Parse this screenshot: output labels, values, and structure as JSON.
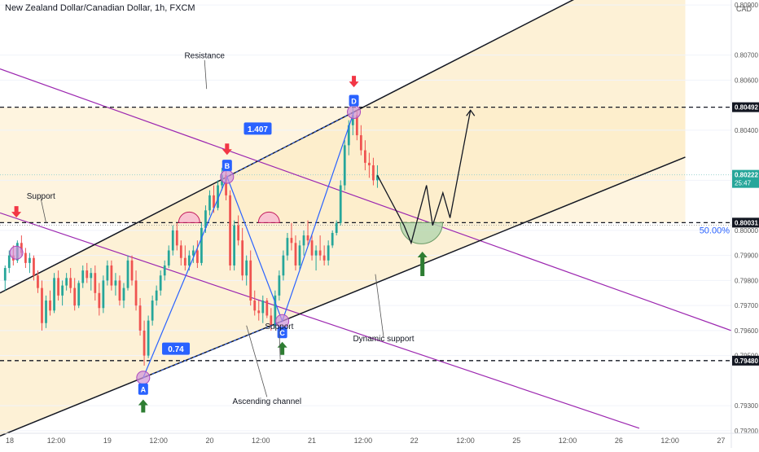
{
  "header": {
    "title": "New Zealand Dollar/Canadian Dollar, 1h, FXCM",
    "currency": "CAD"
  },
  "chart_data": {
    "type": "candlestick",
    "ylim": [
      0.7919,
      0.8092
    ],
    "y_ticks": [
      {
        "value": 0.809,
        "label": "0.80900"
      },
      {
        "value": 0.807,
        "label": "0.80700"
      },
      {
        "value": 0.806,
        "label": "0.80600"
      },
      {
        "value": 0.804,
        "label": "0.80400"
      },
      {
        "value": 0.802,
        "label": "0.80200"
      },
      {
        "value": 0.8,
        "label": "0.80000"
      },
      {
        "value": 0.799,
        "label": "0.79900"
      },
      {
        "value": 0.798,
        "label": "0.79800"
      },
      {
        "value": 0.797,
        "label": "0.79700"
      },
      {
        "value": 0.796,
        "label": "0.79600"
      },
      {
        "value": 0.795,
        "label": "0.79500"
      },
      {
        "value": 0.793,
        "label": "0.79300"
      },
      {
        "value": 0.792,
        "label": "0.79200"
      }
    ],
    "price_tags": [
      {
        "value": 0.80492,
        "label": "0.80492",
        "style": "dark"
      },
      {
        "value": 0.80222,
        "label": "0.80222",
        "sub": "25:47",
        "style": "teal"
      },
      {
        "value": 0.80031,
        "label": "0.80031",
        "style": "dark"
      },
      {
        "value": 0.7948,
        "label": "0.79480",
        "style": "dark"
      }
    ],
    "x_ticks": [
      "18",
      "12:00",
      "19",
      "12:00",
      "20",
      "12:00",
      "21",
      "12:00",
      "22",
      "12:00",
      "25",
      "12:00",
      "26",
      "12:00",
      "27"
    ],
    "x_tick_positions": [
      18,
      18.5,
      19,
      19.5,
      20,
      20.5,
      21,
      21.5,
      22,
      22.5,
      23,
      23.5,
      24,
      24.5,
      25
    ],
    "x_range": [
      17.95,
      25.1
    ],
    "candles": [
      [
        18.0,
        0.798,
        0.7986,
        0.7976,
        0.7985
      ],
      [
        18.04,
        0.7985,
        0.7992,
        0.7983,
        0.799
      ],
      [
        18.08,
        0.799,
        0.7994,
        0.7986,
        0.7988
      ],
      [
        18.12,
        0.7988,
        0.7996,
        0.7987,
        0.7995
      ],
      [
        18.16,
        0.7995,
        0.7998,
        0.799,
        0.7991
      ],
      [
        18.2,
        0.7991,
        0.7993,
        0.7985,
        0.7987
      ],
      [
        18.24,
        0.7987,
        0.7991,
        0.7983,
        0.7989
      ],
      [
        18.28,
        0.7989,
        0.799,
        0.798,
        0.7982
      ],
      [
        18.32,
        0.7982,
        0.7984,
        0.7975,
        0.7977
      ],
      [
        18.36,
        0.7977,
        0.798,
        0.796,
        0.7963
      ],
      [
        18.4,
        0.7963,
        0.7974,
        0.7961,
        0.7972
      ],
      [
        18.44,
        0.7972,
        0.7976,
        0.7966,
        0.7968
      ],
      [
        18.48,
        0.7968,
        0.7983,
        0.7967,
        0.7981
      ],
      [
        18.52,
        0.7981,
        0.7984,
        0.7972,
        0.7974
      ],
      [
        18.56,
        0.7974,
        0.798,
        0.797,
        0.7978
      ],
      [
        18.6,
        0.7978,
        0.7983,
        0.7976,
        0.7981
      ],
      [
        18.64,
        0.7981,
        0.7985,
        0.7975,
        0.7977
      ],
      [
        18.68,
        0.7977,
        0.7981,
        0.7968,
        0.797
      ],
      [
        18.72,
        0.797,
        0.798,
        0.7969,
        0.7979
      ],
      [
        18.76,
        0.7979,
        0.7986,
        0.7977,
        0.7984
      ],
      [
        18.8,
        0.7984,
        0.7987,
        0.7979,
        0.7981
      ],
      [
        18.84,
        0.7981,
        0.7985,
        0.7976,
        0.7983
      ],
      [
        18.88,
        0.7983,
        0.7986,
        0.7972,
        0.7975
      ],
      [
        18.92,
        0.7975,
        0.7979,
        0.7966,
        0.7969
      ],
      [
        18.96,
        0.7969,
        0.7982,
        0.7967,
        0.798
      ],
      [
        19.0,
        0.798,
        0.7988,
        0.7978,
        0.7986
      ],
      [
        19.04,
        0.7986,
        0.7988,
        0.7976,
        0.7978
      ],
      [
        19.08,
        0.7978,
        0.7983,
        0.7974,
        0.798
      ],
      [
        19.12,
        0.798,
        0.7982,
        0.797,
        0.7972
      ],
      [
        19.16,
        0.7972,
        0.7979,
        0.7969,
        0.7977
      ],
      [
        19.2,
        0.7977,
        0.799,
        0.7976,
        0.7988
      ],
      [
        19.24,
        0.7988,
        0.799,
        0.7978,
        0.798
      ],
      [
        19.28,
        0.798,
        0.7984,
        0.7968,
        0.797
      ],
      [
        19.32,
        0.797,
        0.7973,
        0.7958,
        0.796
      ],
      [
        19.36,
        0.796,
        0.7964,
        0.7946,
        0.795
      ],
      [
        19.4,
        0.795,
        0.7966,
        0.7949,
        0.7964
      ],
      [
        19.44,
        0.7964,
        0.7974,
        0.7962,
        0.7972
      ],
      [
        19.48,
        0.7972,
        0.7978,
        0.797,
        0.7976
      ],
      [
        19.52,
        0.7976,
        0.7984,
        0.7974,
        0.7982
      ],
      [
        19.56,
        0.7982,
        0.7988,
        0.798,
        0.7986
      ],
      [
        19.6,
        0.7986,
        0.7994,
        0.7985,
        0.7992
      ],
      [
        19.64,
        0.7992,
        0.8002,
        0.799,
        0.8
      ],
      [
        19.68,
        0.8,
        0.8003,
        0.7992,
        0.7994
      ],
      [
        19.72,
        0.7994,
        0.7996,
        0.7986,
        0.7989
      ],
      [
        19.76,
        0.7989,
        0.7994,
        0.7984,
        0.7986
      ],
      [
        19.8,
        0.7986,
        0.7992,
        0.7984,
        0.799
      ],
      [
        19.84,
        0.799,
        0.7994,
        0.7987,
        0.7992
      ],
      [
        19.88,
        0.7992,
        0.7996,
        0.7985,
        0.7987
      ],
      [
        19.92,
        0.7987,
        0.8003,
        0.7986,
        0.8001
      ],
      [
        19.96,
        0.8001,
        0.801,
        0.7999,
        0.8008
      ],
      [
        20.0,
        0.8008,
        0.8016,
        0.8006,
        0.8014
      ],
      [
        20.04,
        0.8014,
        0.8018,
        0.8007,
        0.8009
      ],
      [
        20.08,
        0.8009,
        0.802,
        0.8008,
        0.8018
      ],
      [
        20.12,
        0.8018,
        0.8025,
        0.8016,
        0.8022
      ],
      [
        20.16,
        0.8022,
        0.8024,
        0.8012,
        0.8014
      ],
      [
        20.2,
        0.8014,
        0.8016,
        0.7984,
        0.7986
      ],
      [
        20.24,
        0.7986,
        0.8004,
        0.7984,
        0.8002
      ],
      [
        20.28,
        0.8002,
        0.8006,
        0.7994,
        0.7996
      ],
      [
        20.32,
        0.7996,
        0.8001,
        0.798,
        0.7982
      ],
      [
        20.36,
        0.7982,
        0.799,
        0.7978,
        0.7988
      ],
      [
        20.4,
        0.7988,
        0.7992,
        0.797,
        0.7972
      ],
      [
        20.44,
        0.7972,
        0.7976,
        0.7966,
        0.7968
      ],
      [
        20.48,
        0.7968,
        0.7972,
        0.7964,
        0.7967
      ],
      [
        20.52,
        0.7967,
        0.7974,
        0.7963,
        0.7972
      ],
      [
        20.56,
        0.7972,
        0.7973,
        0.7965,
        0.7966
      ],
      [
        20.6,
        0.7966,
        0.7969,
        0.796,
        0.7962
      ],
      [
        20.64,
        0.7962,
        0.7976,
        0.7961,
        0.7974
      ],
      [
        20.68,
        0.7974,
        0.7984,
        0.7972,
        0.7982
      ],
      [
        20.72,
        0.7982,
        0.7992,
        0.798,
        0.799
      ],
      [
        20.76,
        0.799,
        0.7999,
        0.7988,
        0.7997
      ],
      [
        20.8,
        0.7997,
        0.8003,
        0.7992,
        0.7995
      ],
      [
        20.84,
        0.7995,
        0.7998,
        0.7984,
        0.7986
      ],
      [
        20.88,
        0.7986,
        0.7996,
        0.7984,
        0.7994
      ],
      [
        20.92,
        0.7994,
        0.8,
        0.799,
        0.7998
      ],
      [
        20.96,
        0.7998,
        0.8004,
        0.7994,
        0.7996
      ],
      [
        21.0,
        0.7996,
        0.7998,
        0.7988,
        0.799
      ],
      [
        21.04,
        0.799,
        0.7994,
        0.7984,
        0.7992
      ],
      [
        21.08,
        0.7992,
        0.7998,
        0.7988,
        0.799
      ],
      [
        21.12,
        0.799,
        0.7994,
        0.7986,
        0.7988
      ],
      [
        21.16,
        0.7988,
        0.7996,
        0.7986,
        0.7994
      ],
      [
        21.2,
        0.7994,
        0.8,
        0.7993,
        0.7999
      ],
      [
        21.24,
        0.7999,
        0.8004,
        0.7998,
        0.8003
      ],
      [
        21.28,
        0.8003,
        0.802,
        0.8002,
        0.8018
      ],
      [
        21.32,
        0.8018,
        0.8036,
        0.8016,
        0.8034
      ],
      [
        21.36,
        0.8034,
        0.8044,
        0.803,
        0.8042
      ],
      [
        21.4,
        0.8042,
        0.8049,
        0.8038,
        0.8046
      ],
      [
        21.44,
        0.8046,
        0.8048,
        0.8036,
        0.8038
      ],
      [
        21.48,
        0.8038,
        0.8042,
        0.803,
        0.8032
      ],
      [
        21.52,
        0.8032,
        0.8036,
        0.8024,
        0.8027
      ],
      [
        21.56,
        0.8027,
        0.8031,
        0.8021,
        0.8026
      ],
      [
        21.6,
        0.8026,
        0.8029,
        0.8018,
        0.802
      ],
      [
        21.64,
        0.802,
        0.8026,
        0.8017,
        0.8022
      ]
    ],
    "annotations": {
      "labels": [
        {
          "text": "Resistance",
          "x": 19.95,
          "y": 0.807
        },
        {
          "text": "Support",
          "x": 18.35,
          "y": 0.8014
        },
        {
          "text": "Support",
          "x": 20.68,
          "y": 0.7962
        },
        {
          "text": "Dynamic support",
          "x": 21.7,
          "y": 0.7957
        },
        {
          "text": "Ascending channel",
          "x": 20.56,
          "y": 0.7932
        }
      ],
      "points": [
        {
          "label": "A",
          "x": 19.35,
          "y": 0.79412
        },
        {
          "label": "B",
          "x": 20.17,
          "y": 0.80214
        },
        {
          "label": "C",
          "x": 20.71,
          "y": 0.79638
        },
        {
          "label": "D",
          "x": 21.41,
          "y": 0.80473
        }
      ],
      "ratios": [
        {
          "text": "1.407",
          "x": 20.47,
          "y": 0.80405
        },
        {
          "text": "0.74",
          "x": 19.67,
          "y": 0.79526
        }
      ],
      "fib_label": "50.00%",
      "h_levels": [
        0.80492,
        0.80031,
        0.7948
      ]
    }
  }
}
